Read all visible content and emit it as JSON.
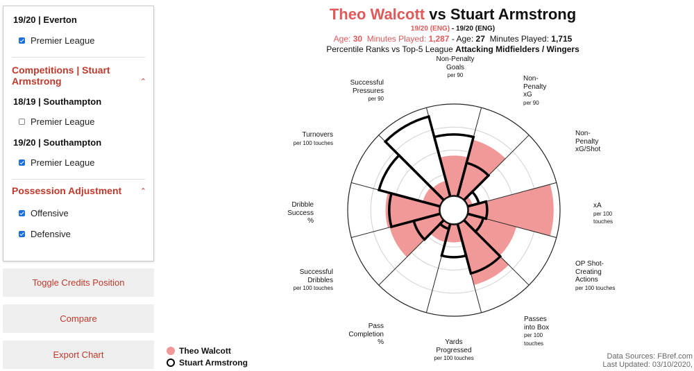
{
  "panel": {
    "top_season": "19/20 | Everton",
    "top_comp": "Premier League",
    "section1": "Competitions | Stuart Armstrong",
    "seasons": [
      {
        "season": "18/19 | Southampton",
        "comp": "Premier League",
        "checked": false
      },
      {
        "season": "19/20 | Southampton",
        "comp": "Premier League",
        "checked": true
      }
    ],
    "section2": "Possession Adjustment",
    "adjustments": [
      {
        "label": "Offensive",
        "checked": true
      },
      {
        "label": "Defensive",
        "checked": true
      }
    ]
  },
  "buttons": {
    "toggle": "Toggle Credits Position",
    "compare": "Compare",
    "export": "Export Chart"
  },
  "header": {
    "player1": "Theo Walcott",
    "vs": "vs",
    "player2": "Stuart Armstrong",
    "season1": "19/20 (ENG)",
    "sep": " - ",
    "season2": "19/20 (ENG)",
    "age1_label": "Age:",
    "age1": "30",
    "mins1_label": "Minutes Played:",
    "mins1": "1,287",
    "age2_label": "- Age:",
    "age2": "27",
    "mins2_label": "Minutes Played:",
    "mins2": "1,715",
    "subtitle_prefix": "Percentile Ranks vs Top-5 League",
    "subtitle_bold": "Attacking Midfielders / Wingers"
  },
  "legend": {
    "p1": "Theo Walcott",
    "p2": "Stuart Armstrong"
  },
  "credits": {
    "line1": "Data Sources: FBref.com",
    "line2": "Last Updated: 03/10/2020,"
  },
  "colors": {
    "player1_fill": "#f19999",
    "player1_text": "#e05a5a",
    "player2_stroke": "#000000",
    "accent": "#c0392b"
  },
  "chart_data": {
    "type": "polar-bar",
    "categories": [
      {
        "name": "Non-Penalty Goals",
        "unit": "per 90"
      },
      {
        "name": "Non-Penalty xG",
        "unit": "per 90"
      },
      {
        "name": "Non-Penalty xG/Shot",
        "unit": ""
      },
      {
        "name": "xA",
        "unit": "per 100 touches"
      },
      {
        "name": "OP Shot-Creating Actions",
        "unit": "per 100 touches"
      },
      {
        "name": "Passes into Box",
        "unit": "per 100 touches"
      },
      {
        "name": "Yards Progressed",
        "unit": "per 100 touches"
      },
      {
        "name": "Pass Completion",
        "unit": "%"
      },
      {
        "name": "Successful Dribbles",
        "unit": "per 100 touches"
      },
      {
        "name": "Dribble Success",
        "unit": "%"
      },
      {
        "name": "Turnovers",
        "unit": "per 100 touches"
      },
      {
        "name": "Successful Pressures",
        "unit": "per 90"
      }
    ],
    "series": [
      {
        "name": "Theo Walcott",
        "values": [
          44,
          64,
          6,
          93,
          55,
          69,
          20,
          21,
          57,
          59,
          20,
          18
        ]
      },
      {
        "name": "Stuart Armstrong",
        "values": [
          67,
          38,
          13,
          21,
          18,
          56,
          36,
          6,
          30,
          55,
          69,
          90
        ]
      }
    ],
    "rlim": [
      0,
      100
    ],
    "grid": true,
    "legend_position": "bottom-left"
  }
}
